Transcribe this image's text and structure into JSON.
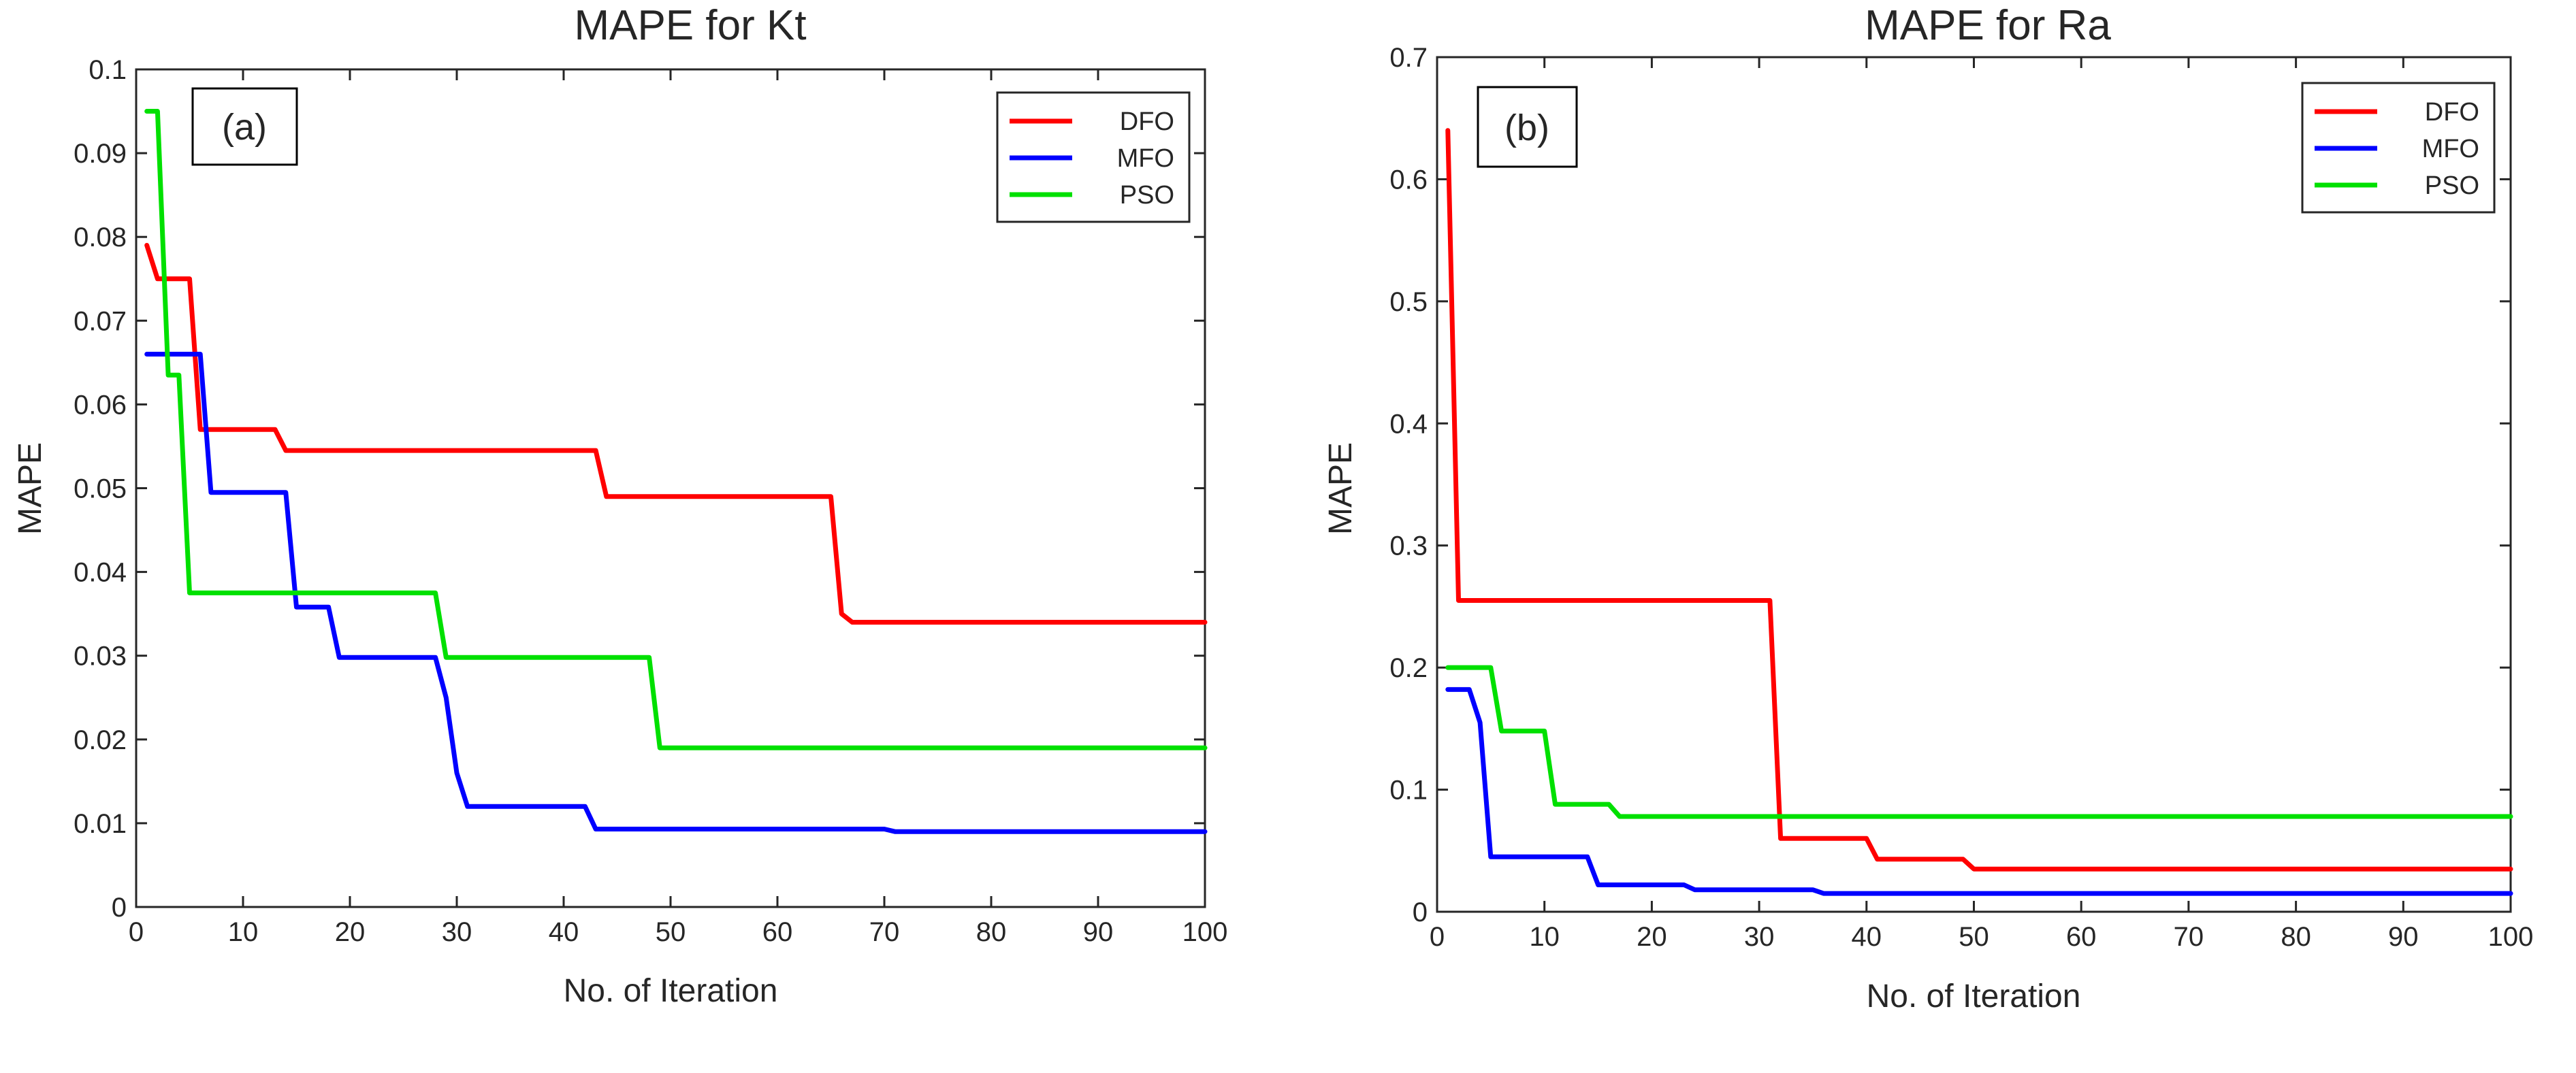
{
  "chart_data": [
    {
      "type": "line",
      "title": "MAPE for Kt",
      "tag": "(a)",
      "xlabel": "No. of Iteration",
      "ylabel": "MAPE",
      "xlim": [
        0,
        100
      ],
      "ylim": [
        0,
        0.1
      ],
      "xticks": [
        0,
        10,
        20,
        30,
        40,
        50,
        60,
        70,
        80,
        90,
        100
      ],
      "xtick_labels": [
        "0",
        "10",
        "20",
        "30",
        "40",
        "50",
        "60",
        "70",
        "80",
        "90",
        "100"
      ],
      "yticks": [
        0,
        0.01,
        0.02,
        0.03,
        0.04,
        0.05,
        0.06,
        0.07,
        0.08,
        0.09,
        0.1
      ],
      "ytick_labels": [
        "0",
        "0.01",
        "0.02",
        "0.03",
        "0.04",
        "0.05",
        "0.06",
        "0.07",
        "0.08",
        "0.09",
        "0.1"
      ],
      "grid": false,
      "legend_position": "top-right",
      "series": [
        {
          "name": "DFO",
          "color": "#ff0000",
          "points": [
            [
              1,
              0.079
            ],
            [
              2,
              0.075
            ],
            [
              5,
              0.075
            ],
            [
              6,
              0.057
            ],
            [
              13,
              0.057
            ],
            [
              14,
              0.0545
            ],
            [
              43,
              0.0545
            ],
            [
              44,
              0.049
            ],
            [
              65,
              0.049
            ],
            [
              66,
              0.035
            ],
            [
              67,
              0.034
            ],
            [
              100,
              0.034
            ]
          ]
        },
        {
          "name": "MFO",
          "color": "#0000ff",
          "points": [
            [
              1,
              0.066
            ],
            [
              6,
              0.066
            ],
            [
              7,
              0.0495
            ],
            [
              14,
              0.0495
            ],
            [
              15,
              0.0358
            ],
            [
              18,
              0.0358
            ],
            [
              19,
              0.0298
            ],
            [
              28,
              0.0298
            ],
            [
              29,
              0.025
            ],
            [
              30,
              0.016
            ],
            [
              31,
              0.012
            ],
            [
              42,
              0.012
            ],
            [
              43,
              0.0093
            ],
            [
              70,
              0.0093
            ],
            [
              71,
              0.009
            ],
            [
              100,
              0.009
            ]
          ]
        },
        {
          "name": "PSO",
          "color": "#00e000",
          "points": [
            [
              1,
              0.095
            ],
            [
              2,
              0.095
            ],
            [
              3,
              0.0635
            ],
            [
              4,
              0.0635
            ],
            [
              5,
              0.0375
            ],
            [
              28,
              0.0375
            ],
            [
              29,
              0.0298
            ],
            [
              48,
              0.0298
            ],
            [
              49,
              0.019
            ],
            [
              100,
              0.019
            ]
          ]
        }
      ]
    },
    {
      "type": "line",
      "title": "MAPE for Ra",
      "tag": "(b)",
      "xlabel": "No. of Iteration",
      "ylabel": "MAPE",
      "xlim": [
        0,
        100
      ],
      "ylim": [
        0,
        0.7
      ],
      "xticks": [
        0,
        10,
        20,
        30,
        40,
        50,
        60,
        70,
        80,
        90,
        100
      ],
      "xtick_labels": [
        "0",
        "10",
        "20",
        "30",
        "40",
        "50",
        "60",
        "70",
        "80",
        "90",
        "100"
      ],
      "yticks": [
        0,
        0.1,
        0.2,
        0.3,
        0.4,
        0.5,
        0.6,
        0.7
      ],
      "ytick_labels": [
        "0",
        "0.1",
        "0.2",
        "0.3",
        "0.4",
        "0.5",
        "0.6",
        "0.7"
      ],
      "grid": false,
      "legend_position": "top-right",
      "series": [
        {
          "name": "DFO",
          "color": "#ff0000",
          "points": [
            [
              1,
              0.64
            ],
            [
              2,
              0.255
            ],
            [
              31,
              0.255
            ],
            [
              32,
              0.06
            ],
            [
              40,
              0.06
            ],
            [
              41,
              0.043
            ],
            [
              49,
              0.043
            ],
            [
              50,
              0.035
            ],
            [
              100,
              0.035
            ]
          ]
        },
        {
          "name": "MFO",
          "color": "#0000ff",
          "points": [
            [
              1,
              0.182
            ],
            [
              3,
              0.182
            ],
            [
              4,
              0.155
            ],
            [
              5,
              0.045
            ],
            [
              14,
              0.045
            ],
            [
              15,
              0.022
            ],
            [
              23,
              0.022
            ],
            [
              24,
              0.018
            ],
            [
              35,
              0.018
            ],
            [
              36,
              0.015
            ],
            [
              100,
              0.015
            ]
          ]
        },
        {
          "name": "PSO",
          "color": "#00e000",
          "points": [
            [
              1,
              0.2
            ],
            [
              5,
              0.2
            ],
            [
              6,
              0.148
            ],
            [
              10,
              0.148
            ],
            [
              11,
              0.088
            ],
            [
              16,
              0.088
            ],
            [
              17,
              0.078
            ],
            [
              100,
              0.078
            ]
          ]
        }
      ]
    }
  ]
}
